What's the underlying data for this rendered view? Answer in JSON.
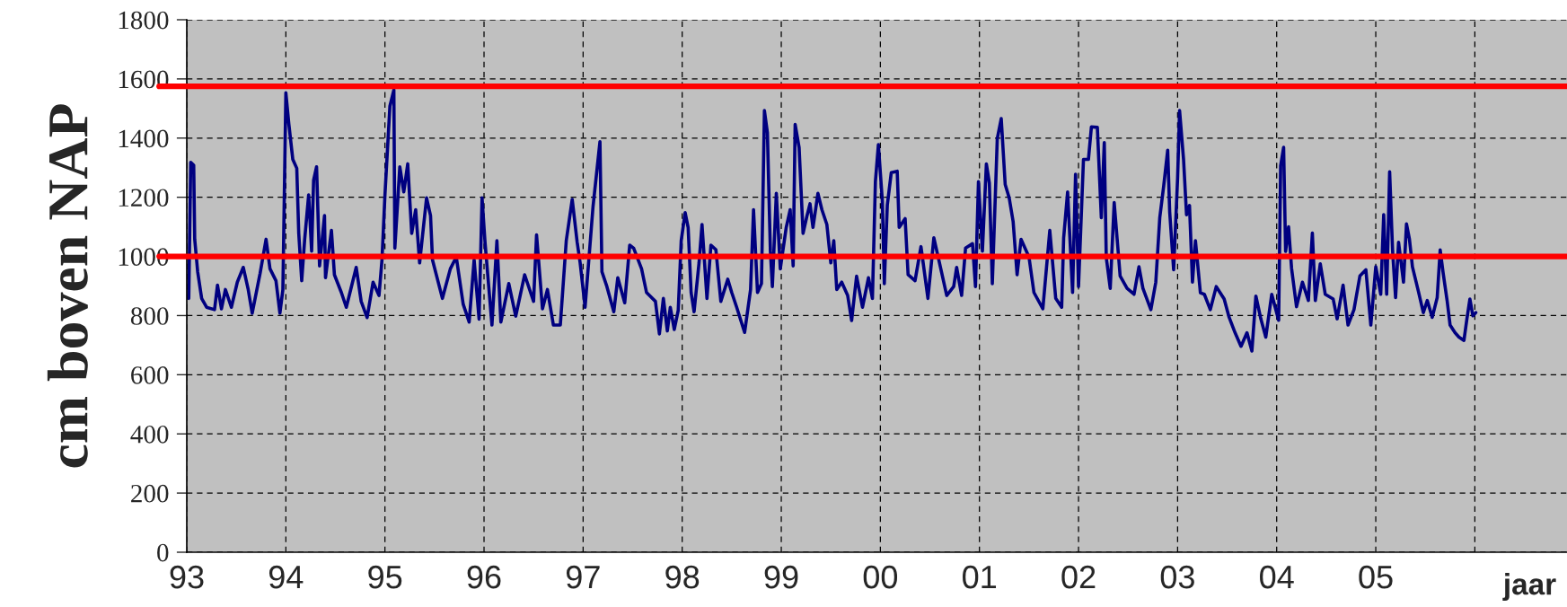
{
  "chart_data": {
    "type": "line",
    "ylabel": "cm boven NAP",
    "xlabel": "jaar",
    "xlim": [
      1993,
      2006.93
    ],
    "ylim": [
      0,
      1800
    ],
    "yticks": [
      0,
      200,
      400,
      600,
      800,
      1000,
      1200,
      1400,
      1600,
      1800
    ],
    "xticks": [
      {
        "value": 1993,
        "label": "93"
      },
      {
        "value": 1994,
        "label": "94"
      },
      {
        "value": 1995,
        "label": "95"
      },
      {
        "value": 1996,
        "label": "96"
      },
      {
        "value": 1997,
        "label": "97"
      },
      {
        "value": 1998,
        "label": "98"
      },
      {
        "value": 1999,
        "label": "99"
      },
      {
        "value": 2000,
        "label": "00"
      },
      {
        "value": 2001,
        "label": "01"
      },
      {
        "value": 2002,
        "label": "02"
      },
      {
        "value": 2003,
        "label": "03"
      },
      {
        "value": 2004,
        "label": "04"
      },
      {
        "value": 2005,
        "label": "05"
      },
      {
        "value": 2006,
        "label": null
      }
    ],
    "grid": true,
    "marker": "none",
    "line_style": "solid",
    "ref_lines": [
      {
        "axis": "y",
        "value": 1000,
        "color": "#ff0000"
      },
      {
        "axis": "y",
        "value": 1575,
        "color": "#ff0000"
      }
    ],
    "series": [
      {
        "color": "#000080",
        "x": [
          1993.02,
          1993.04,
          1993.07,
          1993.08,
          1993.11,
          1993.15,
          1993.2,
          1993.28,
          1993.31,
          1993.35,
          1993.39,
          1993.45,
          1993.51,
          1993.57,
          1993.62,
          1993.66,
          1993.74,
          1993.8,
          1993.84,
          1993.9,
          1993.94,
          1993.97,
          1994.0,
          1994.03,
          1994.07,
          1994.11,
          1994.13,
          1994.16,
          1994.19,
          1994.23,
          1994.26,
          1994.28,
          1994.31,
          1994.34,
          1994.39,
          1994.4,
          1994.46,
          1994.49,
          1994.56,
          1994.61,
          1994.71,
          1994.76,
          1994.82,
          1994.88,
          1994.94,
          1994.97,
          1995.0,
          1995.05,
          1995.09,
          1995.1,
          1995.15,
          1995.19,
          1995.23,
          1995.27,
          1995.31,
          1995.35,
          1995.42,
          1995.46,
          1995.48,
          1995.58,
          1995.66,
          1995.72,
          1995.79,
          1995.85,
          1995.9,
          1995.95,
          1995.98,
          1996.01,
          1996.08,
          1996.13,
          1996.17,
          1996.25,
          1996.32,
          1996.41,
          1996.5,
          1996.53,
          1996.59,
          1996.64,
          1996.7,
          1996.77,
          1996.83,
          1996.89,
          1996.94,
          1996.97,
          1997.02,
          1997.1,
          1997.17,
          1997.19,
          1997.24,
          1997.31,
          1997.35,
          1997.42,
          1997.47,
          1997.51,
          1997.59,
          1997.64,
          1997.73,
          1997.77,
          1997.81,
          1997.85,
          1997.88,
          1997.92,
          1997.96,
          1997.99,
          1998.03,
          1998.06,
          1998.09,
          1998.12,
          1998.17,
          1998.2,
          1998.25,
          1998.29,
          1998.34,
          1998.39,
          1998.46,
          1998.5,
          1998.55,
          1998.63,
          1998.69,
          1998.72,
          1998.76,
          1998.8,
          1998.83,
          1998.86,
          1998.89,
          1998.91,
          1998.95,
          1998.99,
          1999.05,
          1999.09,
          1999.12,
          1999.14,
          1999.18,
          1999.22,
          1999.26,
          1999.29,
          1999.32,
          1999.37,
          1999.41,
          1999.46,
          1999.5,
          1999.53,
          1999.56,
          1999.61,
          1999.67,
          1999.71,
          1999.76,
          1999.82,
          1999.88,
          1999.92,
          1999.95,
          1999.98,
          2000.02,
          2000.04,
          2000.07,
          2000.11,
          2000.17,
          2000.19,
          2000.25,
          2000.28,
          2000.35,
          2000.41,
          2000.48,
          2000.54,
          2000.61,
          2000.67,
          2000.74,
          2000.77,
          2000.82,
          2000.86,
          2000.93,
          2000.96,
          2000.99,
          2001.03,
          2001.07,
          2001.1,
          2001.13,
          2001.18,
          2001.22,
          2001.26,
          2001.3,
          2001.34,
          2001.38,
          2001.42,
          2001.5,
          2001.55,
          2001.64,
          2001.71,
          2001.77,
          2001.83,
          2001.85,
          2001.89,
          2001.94,
          2001.97,
          2002.0,
          2002.05,
          2002.1,
          2002.13,
          2002.19,
          2002.23,
          2002.26,
          2002.28,
          2002.32,
          2002.36,
          2002.39,
          2002.42,
          2002.49,
          2002.56,
          2002.61,
          2002.65,
          2002.73,
          2002.78,
          2002.82,
          2002.86,
          2002.9,
          2002.92,
          2002.96,
          2003.0,
          2003.02,
          2003.06,
          2003.09,
          2003.12,
          2003.15,
          2003.18,
          2003.23,
          2003.27,
          2003.33,
          2003.39,
          2003.47,
          2003.52,
          2003.58,
          2003.64,
          2003.7,
          2003.75,
          2003.79,
          2003.84,
          2003.89,
          2003.95,
          2004.02,
          2004.04,
          2004.07,
          2004.09,
          2004.12,
          2004.15,
          2004.2,
          2004.26,
          2004.32,
          2004.36,
          2004.39,
          2004.44,
          2004.49,
          2004.57,
          2004.61,
          2004.67,
          2004.72,
          2004.78,
          2004.84,
          2004.9,
          2004.95,
          2005.0,
          2005.05,
          2005.08,
          2005.11,
          2005.14,
          2005.17,
          2005.2,
          2005.23,
          2005.28,
          2005.31,
          2005.34,
          2005.37,
          2005.43,
          2005.48,
          2005.52,
          2005.57,
          2005.62,
          2005.65,
          2005.68,
          2005.72,
          2005.75,
          2005.8,
          2005.84,
          2005.89,
          2005.92,
          2005.95,
          2005.98,
          2006.01
        ],
        "values": [
          858,
          1318,
          1308,
          1058,
          948,
          858,
          828,
          820,
          903,
          823,
          888,
          828,
          913,
          963,
          888,
          808,
          943,
          1058,
          958,
          918,
          808,
          888,
          1553,
          1448,
          1328,
          1298,
          1078,
          918,
          1058,
          1208,
          1018,
          1258,
          1303,
          968,
          1138,
          928,
          1088,
          938,
          878,
          828,
          963,
          848,
          793,
          913,
          868,
          988,
          1208,
          1508,
          1563,
          1028,
          1303,
          1218,
          1313,
          1078,
          1158,
          978,
          1198,
          1138,
          988,
          858,
          958,
          998,
          838,
          778,
          988,
          788,
          1198,
          1048,
          768,
          1053,
          778,
          908,
          798,
          938,
          848,
          1073,
          823,
          888,
          768,
          768,
          1053,
          1193,
          1048,
          978,
          828,
          1168,
          1388,
          948,
          898,
          813,
          928,
          843,
          1038,
          1028,
          958,
          878,
          848,
          738,
          858,
          748,
          828,
          753,
          818,
          1053,
          1148,
          1098,
          878,
          813,
          978,
          1108,
          858,
          1038,
          1023,
          848,
          923,
          878,
          828,
          743,
          888,
          1158,
          878,
          908,
          1493,
          1418,
          1018,
          898,
          1213,
          958,
          1098,
          1158,
          968,
          1446,
          1368,
          1078,
          1138,
          1178,
          1098,
          1213,
          1158,
          1108,
          978,
          1053,
          888,
          913,
          868,
          783,
          933,
          828,
          928,
          858,
          1253,
          1378,
          1188,
          908,
          1173,
          1283,
          1288,
          1098,
          1128,
          938,
          918,
          1033,
          858,
          1063,
          958,
          868,
          898,
          963,
          868,
          1028,
          1043,
          898,
          1253,
          1018,
          1313,
          1248,
          908,
          1398,
          1466,
          1243,
          1198,
          1118,
          938,
          1058,
          998,
          878,
          823,
          1088,
          858,
          828,
          1063,
          1218,
          878,
          1278,
          898,
          1328,
          1328,
          1438,
          1436,
          1131,
          1385,
          996,
          892,
          1182,
          1058,
          934,
          892,
          872,
          965,
          892,
          820,
          913,
          1131,
          1239,
          1359,
          1151,
          955,
          1265,
          1493,
          1328,
          1141,
          1172,
          913,
          1053,
          877,
          872,
          820,
          898,
          856,
          794,
          742,
          696,
          742,
          680,
          866,
          789,
          727,
          872,
          784,
          1307,
          1369,
          1017,
          1100,
          960,
          830,
          913,
          851,
          1079,
          851,
          975,
          872,
          856,
          789,
          903,
          768,
          820,
          934,
          955,
          768,
          965,
          872,
          1141,
          872,
          1286,
          1017,
          861,
          1048,
          913,
          1110,
          1058,
          965,
          882,
          810,
          851,
          794,
          861,
          1022,
          944,
          851,
          768,
          742,
          727,
          716,
          789,
          856,
          799,
          810
        ]
      }
    ]
  }
}
